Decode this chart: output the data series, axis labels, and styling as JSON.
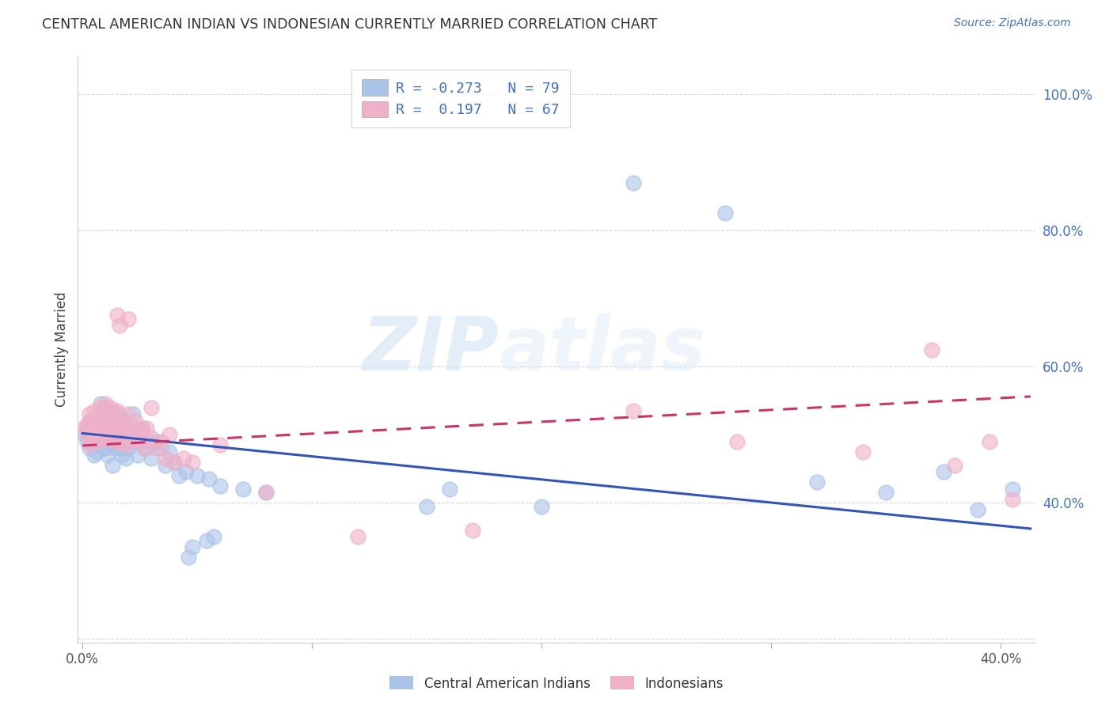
{
  "title": "CENTRAL AMERICAN INDIAN VS INDONESIAN CURRENTLY MARRIED CORRELATION CHART",
  "source": "Source: ZipAtlas.com",
  "ylabel": "Currently Married",
  "xmin": -0.002,
  "xmax": 0.415,
  "ymin": 0.195,
  "ymax": 1.055,
  "blue_R": -0.273,
  "blue_N": 79,
  "pink_R": 0.197,
  "pink_N": 67,
  "blue_color": "#aac4e8",
  "pink_color": "#f0b0c8",
  "blue_line_color": "#3355bb",
  "pink_line_color": "#cc3366",
  "watermark_zip": "ZIP",
  "watermark_atlas": "atlas",
  "legend_label_blue": "Central American Indians",
  "legend_label_pink": "Indonesians",
  "blue_line_x0": 0.0,
  "blue_line_x1": 0.413,
  "blue_line_y0": 0.502,
  "blue_line_y1": 0.362,
  "pink_line_x0": 0.0,
  "pink_line_x1": 0.413,
  "pink_line_y0": 0.484,
  "pink_line_y1": 0.556,
  "blue_x": [
    0.001,
    0.002,
    0.002,
    0.003,
    0.003,
    0.004,
    0.004,
    0.004,
    0.005,
    0.005,
    0.005,
    0.006,
    0.006,
    0.006,
    0.007,
    0.007,
    0.007,
    0.008,
    0.008,
    0.008,
    0.009,
    0.009,
    0.01,
    0.01,
    0.01,
    0.011,
    0.011,
    0.012,
    0.012,
    0.013,
    0.013,
    0.014,
    0.014,
    0.015,
    0.015,
    0.016,
    0.016,
    0.017,
    0.017,
    0.018,
    0.018,
    0.019,
    0.019,
    0.02,
    0.02,
    0.022,
    0.022,
    0.024,
    0.024,
    0.026,
    0.027,
    0.028,
    0.03,
    0.032,
    0.034,
    0.036,
    0.038,
    0.04,
    0.042,
    0.045,
    0.05,
    0.055,
    0.06,
    0.07,
    0.08,
    0.15,
    0.16,
    0.2,
    0.24,
    0.28,
    0.32,
    0.35,
    0.375,
    0.39,
    0.405,
    0.054,
    0.057,
    0.048,
    0.046
  ],
  "blue_y": [
    0.5,
    0.49,
    0.51,
    0.48,
    0.52,
    0.51,
    0.49,
    0.5,
    0.47,
    0.515,
    0.485,
    0.505,
    0.475,
    0.495,
    0.53,
    0.485,
    0.51,
    0.545,
    0.49,
    0.505,
    0.48,
    0.515,
    0.54,
    0.495,
    0.48,
    0.51,
    0.47,
    0.5,
    0.52,
    0.49,
    0.455,
    0.51,
    0.48,
    0.53,
    0.49,
    0.525,
    0.48,
    0.505,
    0.47,
    0.5,
    0.52,
    0.49,
    0.465,
    0.51,
    0.48,
    0.53,
    0.49,
    0.505,
    0.47,
    0.51,
    0.48,
    0.49,
    0.465,
    0.49,
    0.48,
    0.455,
    0.475,
    0.46,
    0.44,
    0.445,
    0.44,
    0.435,
    0.425,
    0.42,
    0.415,
    0.395,
    0.42,
    0.395,
    0.87,
    0.825,
    0.43,
    0.415,
    0.445,
    0.39,
    0.42,
    0.345,
    0.35,
    0.335,
    0.32
  ],
  "pink_x": [
    0.001,
    0.002,
    0.002,
    0.003,
    0.003,
    0.004,
    0.004,
    0.005,
    0.005,
    0.006,
    0.006,
    0.007,
    0.007,
    0.008,
    0.008,
    0.009,
    0.009,
    0.01,
    0.01,
    0.011,
    0.011,
    0.012,
    0.012,
    0.013,
    0.013,
    0.014,
    0.014,
    0.015,
    0.015,
    0.016,
    0.016,
    0.017,
    0.017,
    0.018,
    0.019,
    0.02,
    0.021,
    0.022,
    0.023,
    0.024,
    0.025,
    0.026,
    0.027,
    0.028,
    0.03,
    0.032,
    0.034,
    0.036,
    0.038,
    0.04,
    0.044,
    0.048,
    0.06,
    0.08,
    0.12,
    0.17,
    0.24,
    0.285,
    0.34,
    0.37,
    0.015,
    0.016,
    0.02,
    0.03,
    0.38,
    0.395,
    0.405
  ],
  "pink_y": [
    0.51,
    0.5,
    0.515,
    0.485,
    0.53,
    0.505,
    0.52,
    0.495,
    0.535,
    0.5,
    0.515,
    0.49,
    0.52,
    0.54,
    0.51,
    0.53,
    0.495,
    0.545,
    0.51,
    0.52,
    0.495,
    0.54,
    0.51,
    0.5,
    0.535,
    0.51,
    0.49,
    0.535,
    0.51,
    0.515,
    0.49,
    0.52,
    0.49,
    0.51,
    0.485,
    0.53,
    0.51,
    0.495,
    0.52,
    0.49,
    0.51,
    0.505,
    0.48,
    0.51,
    0.495,
    0.48,
    0.49,
    0.465,
    0.5,
    0.46,
    0.465,
    0.46,
    0.485,
    0.415,
    0.35,
    0.36,
    0.535,
    0.49,
    0.475,
    0.625,
    0.675,
    0.66,
    0.67,
    0.54,
    0.455,
    0.49,
    0.405
  ]
}
